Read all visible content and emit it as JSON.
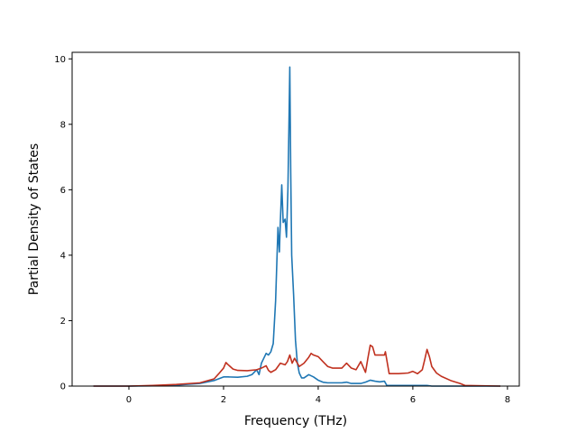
{
  "chart_data": {
    "type": "line",
    "title": "",
    "xlabel": "Frequency (THz)",
    "ylabel": "Partial Density of States",
    "xlim": [
      -1.2,
      8.25
    ],
    "ylim": [
      0,
      10.2
    ],
    "x_ticks": [
      0,
      2,
      4,
      6,
      8
    ],
    "y_ticks": [
      0,
      2,
      4,
      6,
      8,
      10
    ],
    "grid": false,
    "legend": "none",
    "series": [
      {
        "color": "#1f77b4",
        "x": [
          -0.75,
          0.0,
          0.5,
          1.0,
          1.5,
          1.8,
          2.0,
          2.1,
          2.3,
          2.5,
          2.6,
          2.7,
          2.75,
          2.8,
          2.85,
          2.9,
          2.95,
          3.0,
          3.05,
          3.1,
          3.15,
          3.18,
          3.2,
          3.23,
          3.26,
          3.3,
          3.33,
          3.36,
          3.38,
          3.4,
          3.42,
          3.44,
          3.48,
          3.52,
          3.56,
          3.6,
          3.65,
          3.7,
          3.8,
          3.9,
          4.0,
          4.1,
          4.2,
          4.3,
          4.4,
          4.5,
          4.6,
          4.7,
          4.8,
          4.9,
          5.0,
          5.1,
          5.2,
          5.3,
          5.4,
          5.45,
          5.5,
          5.6,
          6.0,
          6.2,
          6.3,
          6.4,
          6.6,
          7.0,
          7.5,
          7.85
        ],
        "y": [
          0.0,
          0.0,
          0.01,
          0.03,
          0.08,
          0.17,
          0.28,
          0.28,
          0.27,
          0.3,
          0.35,
          0.5,
          0.35,
          0.7,
          0.85,
          1.0,
          0.95,
          1.05,
          1.3,
          2.6,
          4.85,
          4.1,
          5.0,
          6.15,
          5.0,
          5.1,
          4.55,
          6.0,
          7.8,
          9.75,
          6.5,
          4.0,
          2.8,
          1.4,
          0.7,
          0.4,
          0.25,
          0.25,
          0.35,
          0.28,
          0.18,
          0.12,
          0.1,
          0.1,
          0.1,
          0.1,
          0.12,
          0.08,
          0.08,
          0.08,
          0.12,
          0.18,
          0.15,
          0.13,
          0.15,
          0.02,
          0.02,
          0.02,
          0.02,
          0.02,
          0.02,
          0.0,
          0.0,
          0.0,
          0.0,
          0.0
        ]
      },
      {
        "color": "#c0311f",
        "x": [
          -0.75,
          0.0,
          0.5,
          1.0,
          1.5,
          1.8,
          1.9,
          2.0,
          2.05,
          2.1,
          2.2,
          2.3,
          2.5,
          2.7,
          2.8,
          2.9,
          2.95,
          3.0,
          3.1,
          3.2,
          3.3,
          3.35,
          3.4,
          3.45,
          3.5,
          3.6,
          3.7,
          3.8,
          3.85,
          3.9,
          4.0,
          4.1,
          4.2,
          4.3,
          4.5,
          4.6,
          4.7,
          4.8,
          4.9,
          5.0,
          5.05,
          5.1,
          5.15,
          5.2,
          5.3,
          5.4,
          5.42,
          5.45,
          5.5,
          5.7,
          5.9,
          6.0,
          6.1,
          6.2,
          6.25,
          6.3,
          6.35,
          6.4,
          6.5,
          6.6,
          6.8,
          7.0,
          7.1,
          7.85
        ],
        "y": [
          0.0,
          0.0,
          0.02,
          0.05,
          0.1,
          0.22,
          0.38,
          0.55,
          0.72,
          0.65,
          0.52,
          0.48,
          0.47,
          0.5,
          0.55,
          0.62,
          0.48,
          0.42,
          0.5,
          0.7,
          0.65,
          0.75,
          0.95,
          0.7,
          0.85,
          0.6,
          0.7,
          0.88,
          1.0,
          0.95,
          0.9,
          0.75,
          0.6,
          0.55,
          0.55,
          0.7,
          0.55,
          0.5,
          0.75,
          0.42,
          0.85,
          1.25,
          1.2,
          0.95,
          0.95,
          0.95,
          1.05,
          0.8,
          0.38,
          0.38,
          0.4,
          0.45,
          0.38,
          0.5,
          0.8,
          1.12,
          0.9,
          0.6,
          0.4,
          0.3,
          0.17,
          0.08,
          0.02,
          0.0
        ]
      }
    ]
  }
}
